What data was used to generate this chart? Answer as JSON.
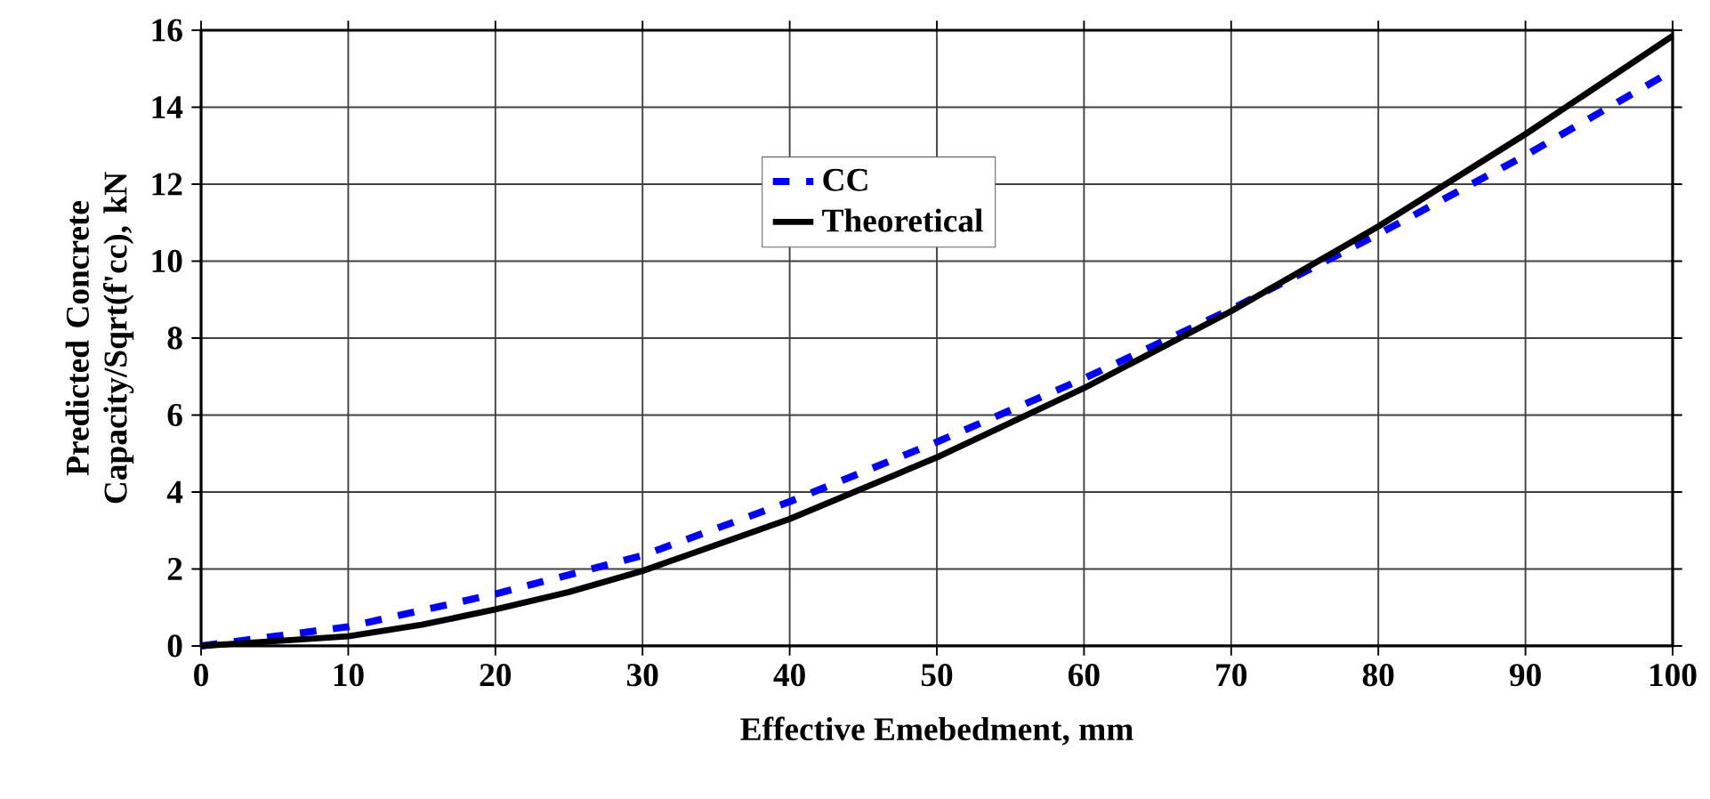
{
  "chart_data": {
    "type": "line",
    "xlabel": "Effective Emebedment, mm",
    "ylabel": "Predicted Concrete Capacity/Sqrt(f'cc), kN",
    "xlim": [
      0,
      100
    ],
    "ylim": [
      0,
      16
    ],
    "xticks": [
      0,
      10,
      20,
      30,
      40,
      50,
      60,
      70,
      80,
      90,
      100
    ],
    "yticks": [
      0,
      2,
      4,
      6,
      8,
      10,
      12,
      14,
      16
    ],
    "grid": true,
    "legend": "top",
    "marker": "none",
    "series": [
      {
        "name": "CC",
        "color": "#0000ff",
        "line_style": "dashed",
        "x": [
          0,
          10,
          20,
          30,
          40,
          50,
          60,
          70,
          80,
          90,
          100
        ],
        "values": [
          0,
          0.5,
          1.35,
          2.35,
          3.75,
          5.3,
          6.95,
          8.75,
          10.7,
          12.75,
          14.95
        ]
      },
      {
        "name": "Theoretical",
        "color": "#000000",
        "line_style": "solid",
        "x": [
          0,
          10,
          15,
          20,
          25,
          30,
          40,
          50,
          60,
          70,
          80,
          90,
          100
        ],
        "values": [
          0,
          0.25,
          0.55,
          0.95,
          1.4,
          1.95,
          3.3,
          4.9,
          6.7,
          8.7,
          10.9,
          13.3,
          15.85
        ]
      }
    ]
  }
}
